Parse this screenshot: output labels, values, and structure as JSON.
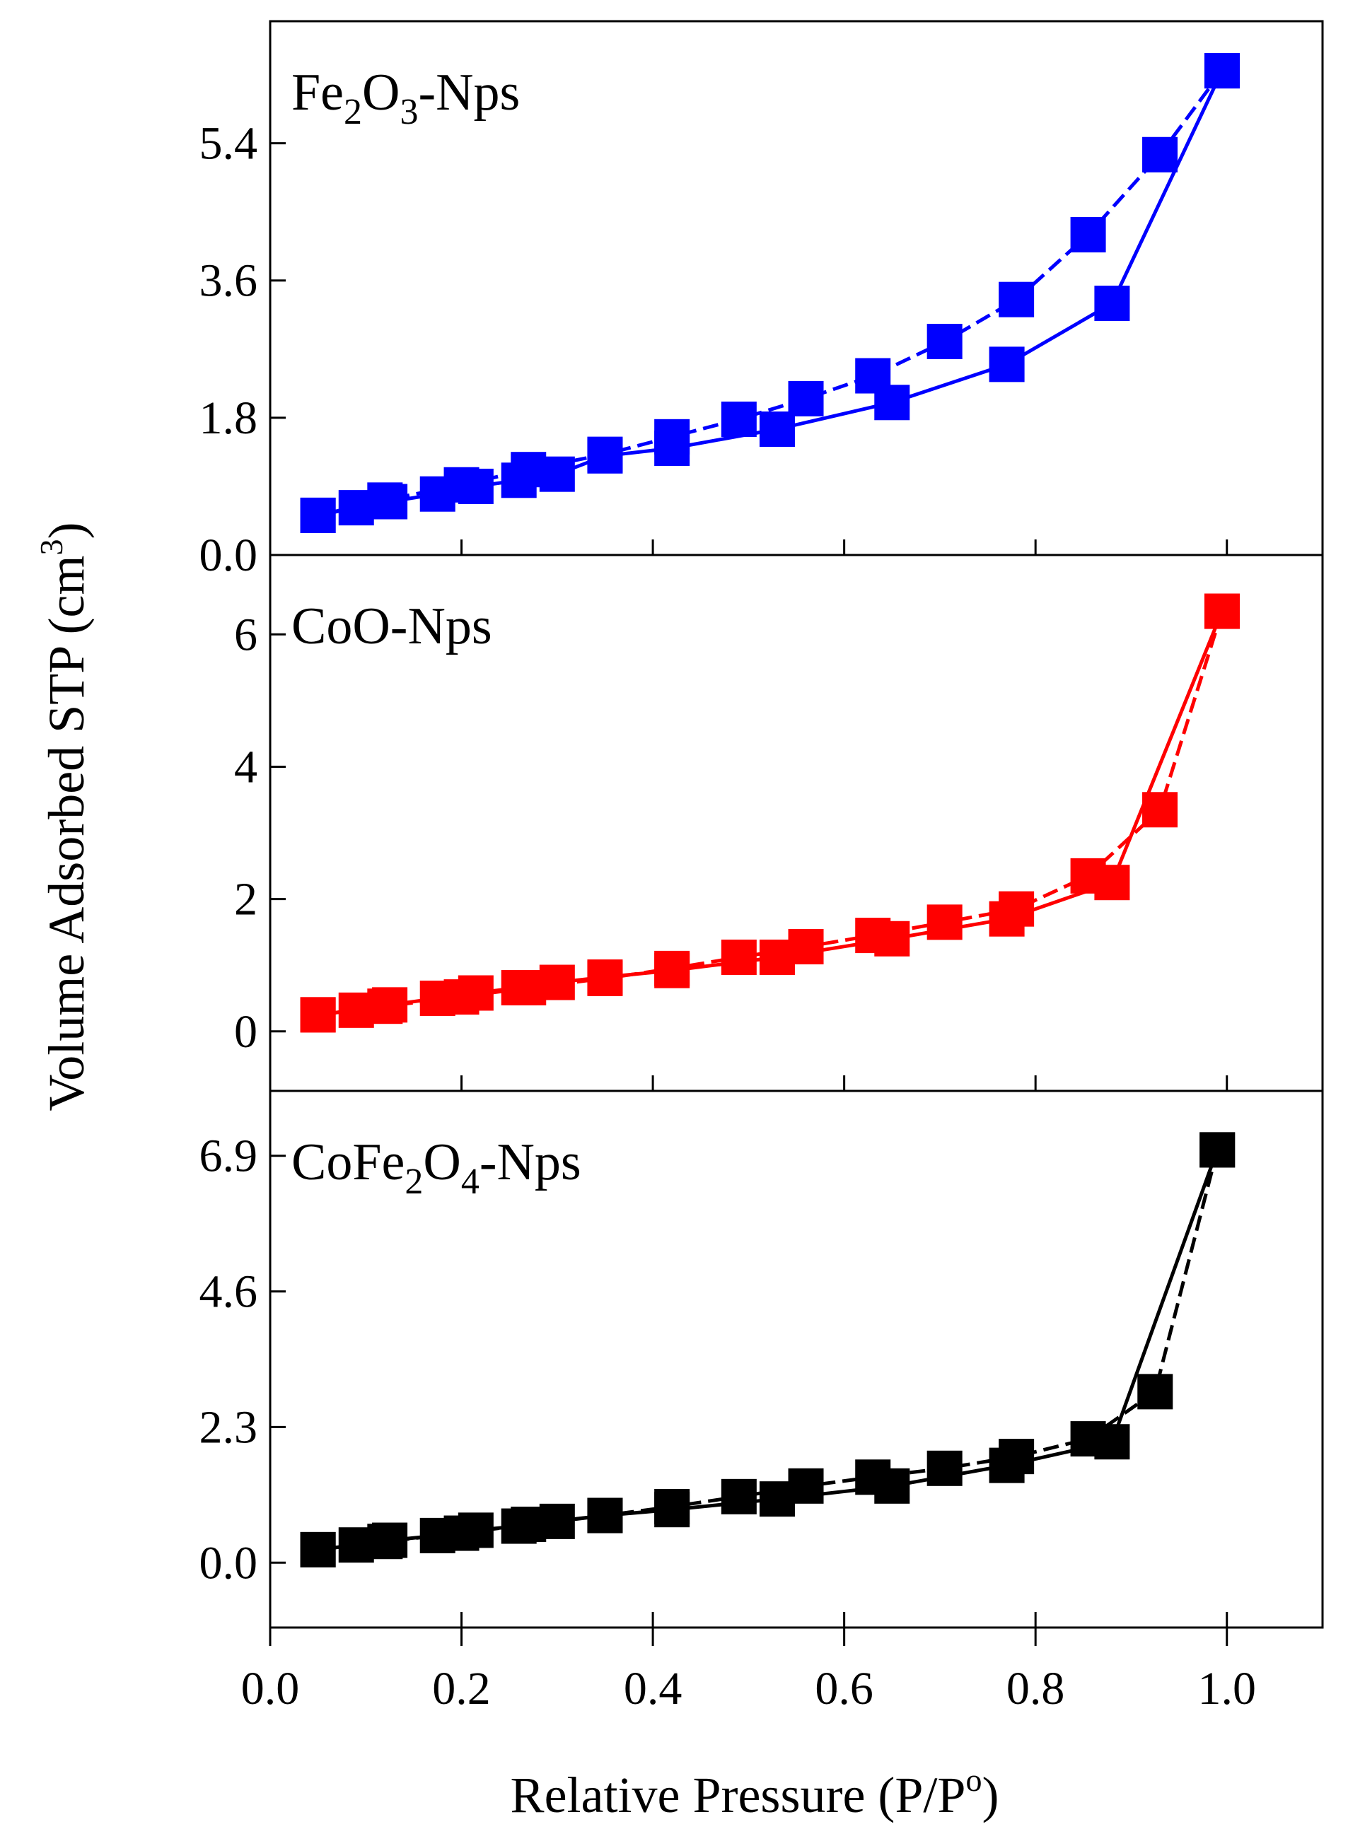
{
  "figure": {
    "x_axis_title": "Relative Pressure (P/P",
    "x_axis_title_sup": "o",
    "x_axis_title_close": ")",
    "y_axis_title": "Volume Adsorbed STP (cm",
    "y_axis_title_sup": "3",
    "y_axis_title_close": ")"
  },
  "chart_data": [
    {
      "type": "line",
      "panel": "Fe2O3-Nps",
      "label_parts": [
        {
          "t": "Fe",
          "sub": false
        },
        {
          "t": "2",
          "sub": true
        },
        {
          "t": "O",
          "sub": false
        },
        {
          "t": "3",
          "sub": true
        },
        {
          "t": "-Nps",
          "sub": false
        }
      ],
      "color": "#0000ff",
      "xlabel": "Relative Pressure (P/Po)",
      "ylabel": "Volume Adsorbed STP (cm3)",
      "xlim": [
        0.0,
        1.1
      ],
      "ylim": [
        0.0,
        7.0
      ],
      "yticks": [
        "0.0",
        "1.8",
        "3.6",
        "5.4"
      ],
      "ytick_values": [
        0.0,
        1.8,
        3.6,
        5.4
      ],
      "xticks": [
        "0.0",
        "0.2",
        "0.4",
        "0.6",
        "0.8",
        "1.0"
      ],
      "xtick_values": [
        0.0,
        0.2,
        0.4,
        0.6,
        0.8,
        1.0
      ],
      "series": [
        {
          "branch": "adsorption",
          "line_style": "solid",
          "x": [
            0.05,
            0.09,
            0.125,
            0.175,
            0.215,
            0.26,
            0.3,
            0.35,
            0.42,
            0.53,
            0.65,
            0.77,
            0.88,
            0.995
          ],
          "y": [
            0.52,
            0.62,
            0.7,
            0.8,
            0.9,
            0.98,
            1.06,
            1.3,
            1.4,
            1.65,
            2.0,
            2.5,
            3.3,
            6.35
          ]
        },
        {
          "branch": "desorption",
          "line_style": "dashed",
          "x": [
            0.995,
            0.93,
            0.855,
            0.78,
            0.705,
            0.63,
            0.56,
            0.49,
            0.42,
            0.35,
            0.27,
            0.2,
            0.12,
            0.05
          ],
          "y": [
            6.35,
            5.25,
            4.2,
            3.35,
            2.8,
            2.35,
            2.05,
            1.78,
            1.55,
            1.32,
            1.12,
            0.92,
            0.72,
            0.52
          ]
        }
      ]
    },
    {
      "type": "line",
      "panel": "CoO-Nps",
      "label_parts": [
        {
          "t": "CoO-Nps",
          "sub": false
        }
      ],
      "color": "#ff0000",
      "xlabel": "Relative Pressure (P/Po)",
      "ylabel": "Volume Adsorbed STP (cm3)",
      "xlim": [
        0.0,
        1.1
      ],
      "ylim": [
        -0.9,
        7.2
      ],
      "yticks": [
        "0",
        "2",
        "4",
        "6"
      ],
      "ytick_values": [
        0,
        2,
        4,
        6
      ],
      "xticks": [
        "0.0",
        "0.2",
        "0.4",
        "0.6",
        "0.8",
        "1.0"
      ],
      "xtick_values": [
        0.0,
        0.2,
        0.4,
        0.6,
        0.8,
        1.0
      ],
      "series": [
        {
          "branch": "adsorption",
          "line_style": "solid",
          "x": [
            0.05,
            0.09,
            0.125,
            0.175,
            0.215,
            0.26,
            0.3,
            0.35,
            0.42,
            0.53,
            0.65,
            0.77,
            0.88,
            0.995
          ],
          "y": [
            0.25,
            0.32,
            0.4,
            0.5,
            0.58,
            0.66,
            0.74,
            0.82,
            0.92,
            1.12,
            1.4,
            1.7,
            2.25,
            6.35
          ]
        },
        {
          "branch": "desorption",
          "line_style": "dashed",
          "x": [
            0.995,
            0.93,
            0.855,
            0.78,
            0.705,
            0.63,
            0.56,
            0.49,
            0.42,
            0.35,
            0.27,
            0.2,
            0.12,
            0.05
          ],
          "y": [
            6.35,
            3.35,
            2.35,
            1.85,
            1.65,
            1.45,
            1.28,
            1.12,
            0.95,
            0.8,
            0.66,
            0.52,
            0.38,
            0.25
          ]
        }
      ]
    },
    {
      "type": "line",
      "panel": "CoFe2O4-Nps",
      "label_parts": [
        {
          "t": "CoFe",
          "sub": false
        },
        {
          "t": "2",
          "sub": true
        },
        {
          "t": "O",
          "sub": false
        },
        {
          "t": "4",
          "sub": true
        },
        {
          "t": "-Nps",
          "sub": false
        }
      ],
      "color": "#000000",
      "xlabel": "Relative Pressure (P/Po)",
      "ylabel": "Volume Adsorbed STP (cm3)",
      "xlim": [
        0.0,
        1.1
      ],
      "ylim": [
        -1.1,
        8.0
      ],
      "yticks": [
        "0.0",
        "2.3",
        "4.6",
        "6.9"
      ],
      "ytick_values": [
        0.0,
        2.3,
        4.6,
        6.9
      ],
      "xticks": [
        "0.0",
        "0.2",
        "0.4",
        "0.6",
        "0.8",
        "1.0"
      ],
      "xtick_values": [
        0.0,
        0.2,
        0.4,
        0.6,
        0.8,
        1.0
      ],
      "series": [
        {
          "branch": "adsorption",
          "line_style": "solid",
          "x": [
            0.05,
            0.09,
            0.125,
            0.175,
            0.215,
            0.26,
            0.3,
            0.35,
            0.42,
            0.53,
            0.65,
            0.77,
            0.88,
            0.99
          ],
          "y": [
            0.22,
            0.3,
            0.38,
            0.46,
            0.55,
            0.62,
            0.7,
            0.8,
            0.9,
            1.08,
            1.3,
            1.65,
            2.05,
            7.0
          ]
        },
        {
          "branch": "desorption",
          "line_style": "dashed",
          "x": [
            0.99,
            0.925,
            0.855,
            0.78,
            0.705,
            0.63,
            0.56,
            0.49,
            0.42,
            0.35,
            0.27,
            0.2,
            0.12,
            0.05
          ],
          "y": [
            7.0,
            2.9,
            2.1,
            1.8,
            1.6,
            1.45,
            1.3,
            1.12,
            0.95,
            0.8,
            0.65,
            0.5,
            0.36,
            0.22
          ]
        }
      ]
    }
  ]
}
